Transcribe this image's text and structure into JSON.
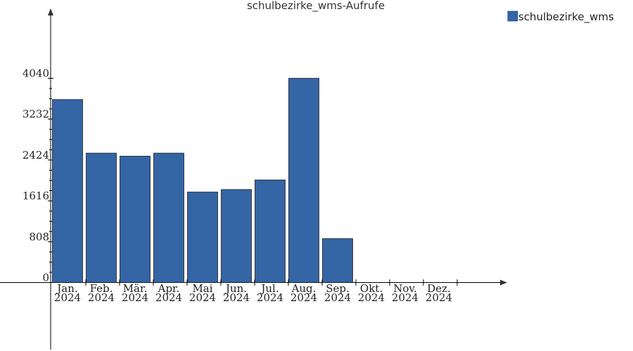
{
  "chart_data": {
    "type": "bar",
    "title": "schulbezirke_wms-Aufrufe",
    "xlabel": "",
    "ylabel": "",
    "categories": [
      [
        "Jan.",
        "2024"
      ],
      [
        "Feb.",
        "2024"
      ],
      [
        "Mär.",
        "2024"
      ],
      [
        "Apr.",
        "2024"
      ],
      [
        "Mai",
        "2024"
      ],
      [
        "Jun.",
        "2024"
      ],
      [
        "Jul.",
        "2024"
      ],
      [
        "Aug.",
        "2024"
      ],
      [
        "Sep.",
        "2024"
      ],
      [
        "Okt.",
        "2024"
      ],
      [
        "Nov.",
        "2024"
      ],
      [
        "Dez.",
        "2024"
      ]
    ],
    "series": [
      {
        "name": "schulbezirke_wms",
        "color": "#3465a4",
        "values": [
          3620,
          2560,
          2500,
          2560,
          1790,
          1840,
          2030,
          4040,
          870,
          0,
          0,
          0
        ]
      }
    ],
    "yticks": [
      0,
      808,
      1616,
      2424,
      3232,
      4040
    ],
    "ylim": [
      0,
      4040
    ],
    "grid": false,
    "legend_position": "top-right"
  }
}
